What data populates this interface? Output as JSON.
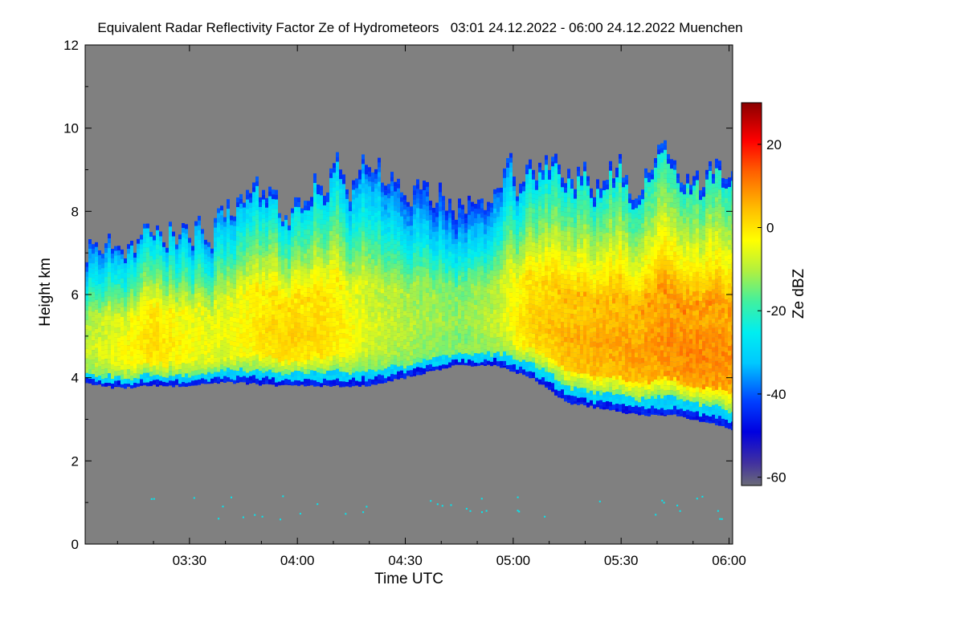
{
  "chart_data": {
    "type": "heatmap",
    "title": "Equivalent Radar Reflectivity Factor Ze of Hydrometeors   03:01 24.12.2022 - 06:00 24.12.2022 Muenchen",
    "xlabel": "Time UTC",
    "ylabel": "Height km",
    "x_unit": "minutes since 03:00 UTC",
    "xlim": [
      1,
      181
    ],
    "ylim": [
      0,
      12
    ],
    "x_ticks": [
      {
        "value": 30,
        "label": "03:30"
      },
      {
        "value": 60,
        "label": "04:00"
      },
      {
        "value": 90,
        "label": "04:30"
      },
      {
        "value": 120,
        "label": "05:00"
      },
      {
        "value": 150,
        "label": "05:30"
      },
      {
        "value": 180,
        "label": "06:00"
      }
    ],
    "y_ticks": [
      {
        "value": 0,
        "label": "0"
      },
      {
        "value": 2,
        "label": "2"
      },
      {
        "value": 4,
        "label": "4"
      },
      {
        "value": 6,
        "label": "6"
      },
      {
        "value": 8,
        "label": "8"
      },
      {
        "value": 10,
        "label": "10"
      },
      {
        "value": 12,
        "label": "12"
      }
    ],
    "colorbar": {
      "label": "Ze dBZ",
      "range": [
        -62,
        30
      ],
      "ticks": [
        {
          "value": 20,
          "label": "20"
        },
        {
          "value": 0,
          "label": "0"
        },
        {
          "value": -20,
          "label": "-20"
        },
        {
          "value": -40,
          "label": "-40"
        },
        {
          "value": -60,
          "label": "-60"
        }
      ]
    },
    "no_signal_color": "#808080",
    "cloud_layer": {
      "description_points": [
        {
          "t": 1,
          "base_km": 3.85,
          "top_km": 7.2,
          "core_dbz": -8
        },
        {
          "t": 10,
          "base_km": 3.75,
          "top_km": 7.7,
          "core_dbz": -4
        },
        {
          "t": 20,
          "base_km": 3.8,
          "top_km": 7.7,
          "core_dbz": 2
        },
        {
          "t": 30,
          "base_km": 3.8,
          "top_km": 7.9,
          "core_dbz": -3
        },
        {
          "t": 40,
          "base_km": 3.9,
          "top_km": 8.3,
          "core_dbz": -4
        },
        {
          "t": 55,
          "base_km": 3.8,
          "top_km": 8.1,
          "core_dbz": 3
        },
        {
          "t": 68,
          "base_km": 3.8,
          "top_km": 9.0,
          "core_dbz": 2
        },
        {
          "t": 80,
          "base_km": 3.8,
          "top_km": 8.8,
          "core_dbz": -6
        },
        {
          "t": 95,
          "base_km": 4.1,
          "top_km": 8.6,
          "core_dbz": -10
        },
        {
          "t": 105,
          "base_km": 4.3,
          "top_km": 8.4,
          "core_dbz": -12
        },
        {
          "t": 115,
          "base_km": 4.3,
          "top_km": 8.6,
          "core_dbz": -8
        },
        {
          "t": 125,
          "base_km": 4.0,
          "top_km": 8.7,
          "core_dbz": 3
        },
        {
          "t": 135,
          "base_km": 3.4,
          "top_km": 8.9,
          "core_dbz": 6
        },
        {
          "t": 145,
          "base_km": 3.25,
          "top_km": 9.1,
          "core_dbz": 7
        },
        {
          "t": 155,
          "base_km": 3.1,
          "top_km": 8.8,
          "core_dbz": 8
        },
        {
          "t": 165,
          "base_km": 3.1,
          "top_km": 8.9,
          "core_dbz": 10
        },
        {
          "t": 175,
          "base_km": 2.9,
          "top_km": 8.8,
          "core_dbz": 10
        },
        {
          "t": 181,
          "base_km": 2.75,
          "top_km": 8.8,
          "core_dbz": 9
        }
      ]
    },
    "clutter_height_km": 1.0
  }
}
